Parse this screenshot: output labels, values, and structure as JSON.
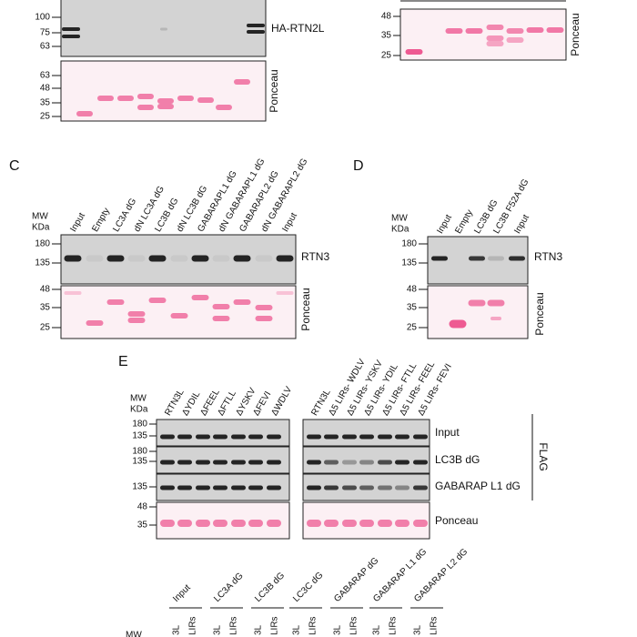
{
  "top_left": {
    "blots": [
      {
        "markers": [
          100,
          75,
          63
        ],
        "label": "HA-RTN2L"
      },
      {
        "markers": [
          63,
          48,
          35,
          25
        ],
        "label": "Ponceau"
      }
    ]
  },
  "top_right": {
    "blots": [
      {
        "markers": [
          48,
          35,
          25
        ],
        "label": "Ponceau"
      }
    ]
  },
  "panel_c": {
    "letter": "C",
    "mw": "MW",
    "kda": "KDa",
    "lanes": [
      "Input",
      "Empty",
      "LC3A dG",
      "dN LC3A dG",
      "LC3B dG",
      "dN LC3B dG",
      "GABARAPL1 dG",
      "dN GABARAPL1 dG",
      "GABARAPL2 dG",
      "dN GABARAPL2 dG",
      "Input"
    ],
    "blots": [
      {
        "markers": [
          180,
          135
        ],
        "label": "RTN3"
      },
      {
        "markers": [
          48,
          35,
          25
        ],
        "label": "Ponceau"
      }
    ]
  },
  "panel_d": {
    "letter": "D",
    "mw": "MW",
    "kda": "KDa",
    "lanes": [
      "Input",
      "Empty",
      "LC3B dG",
      "LC3B F52A dG",
      "Input"
    ],
    "blots": [
      {
        "markers": [
          180,
          135
        ],
        "label": "RTN3"
      },
      {
        "markers": [
          48,
          35,
          25
        ],
        "label": "Ponceau"
      }
    ]
  },
  "panel_e": {
    "letter": "E",
    "mw": "MW",
    "kda": "KDa",
    "lanes_left": [
      "RTN3L",
      "ΔYDIL",
      "ΔFEEL",
      "ΔFTLL",
      "ΔYSKV",
      "ΔFEVI",
      "ΔWDLV"
    ],
    "lanes_right": [
      "RTN3L",
      "Δ5 LIRs- WDLV",
      "Δ5 LIRs- YSKV",
      "Δ5 LIRs- YDIL",
      "Δ5 LIRs- FTLL",
      "Δ5 LIRs- FEEL",
      "Δ5 LIRs- FEVI"
    ],
    "rows": [
      {
        "markers": [
          180,
          135
        ],
        "label": "Input"
      },
      {
        "markers": [
          180,
          135
        ],
        "label": "LC3B dG"
      },
      {
        "markers": [
          135
        ],
        "label": "GABARAP L1 dG"
      },
      {
        "markers": [
          48,
          35
        ],
        "label": "Ponceau"
      }
    ],
    "side_label": "FLAG"
  },
  "panel_f": {
    "mw": "MW",
    "groups": [
      {
        "name": "Input",
        "lanes": [
          "3L",
          "LIRs"
        ]
      },
      {
        "name": "LC3A dG",
        "lanes": [
          "3L",
          "LIRs"
        ]
      },
      {
        "name": "LC3B dG",
        "lanes": [
          "3L",
          "LIRs"
        ]
      },
      {
        "name": "LC3C dG",
        "lanes": [
          "3L",
          "LIRs"
        ]
      },
      {
        "name": "GABARAP dG",
        "lanes": [
          "3L",
          "LIRs"
        ]
      },
      {
        "name": "GABARAP L1 dG",
        "lanes": [
          "3L",
          "LIRs"
        ]
      },
      {
        "name": "GABARAP L2 dG",
        "lanes": [
          "3L",
          "LIRs"
        ]
      }
    ]
  }
}
